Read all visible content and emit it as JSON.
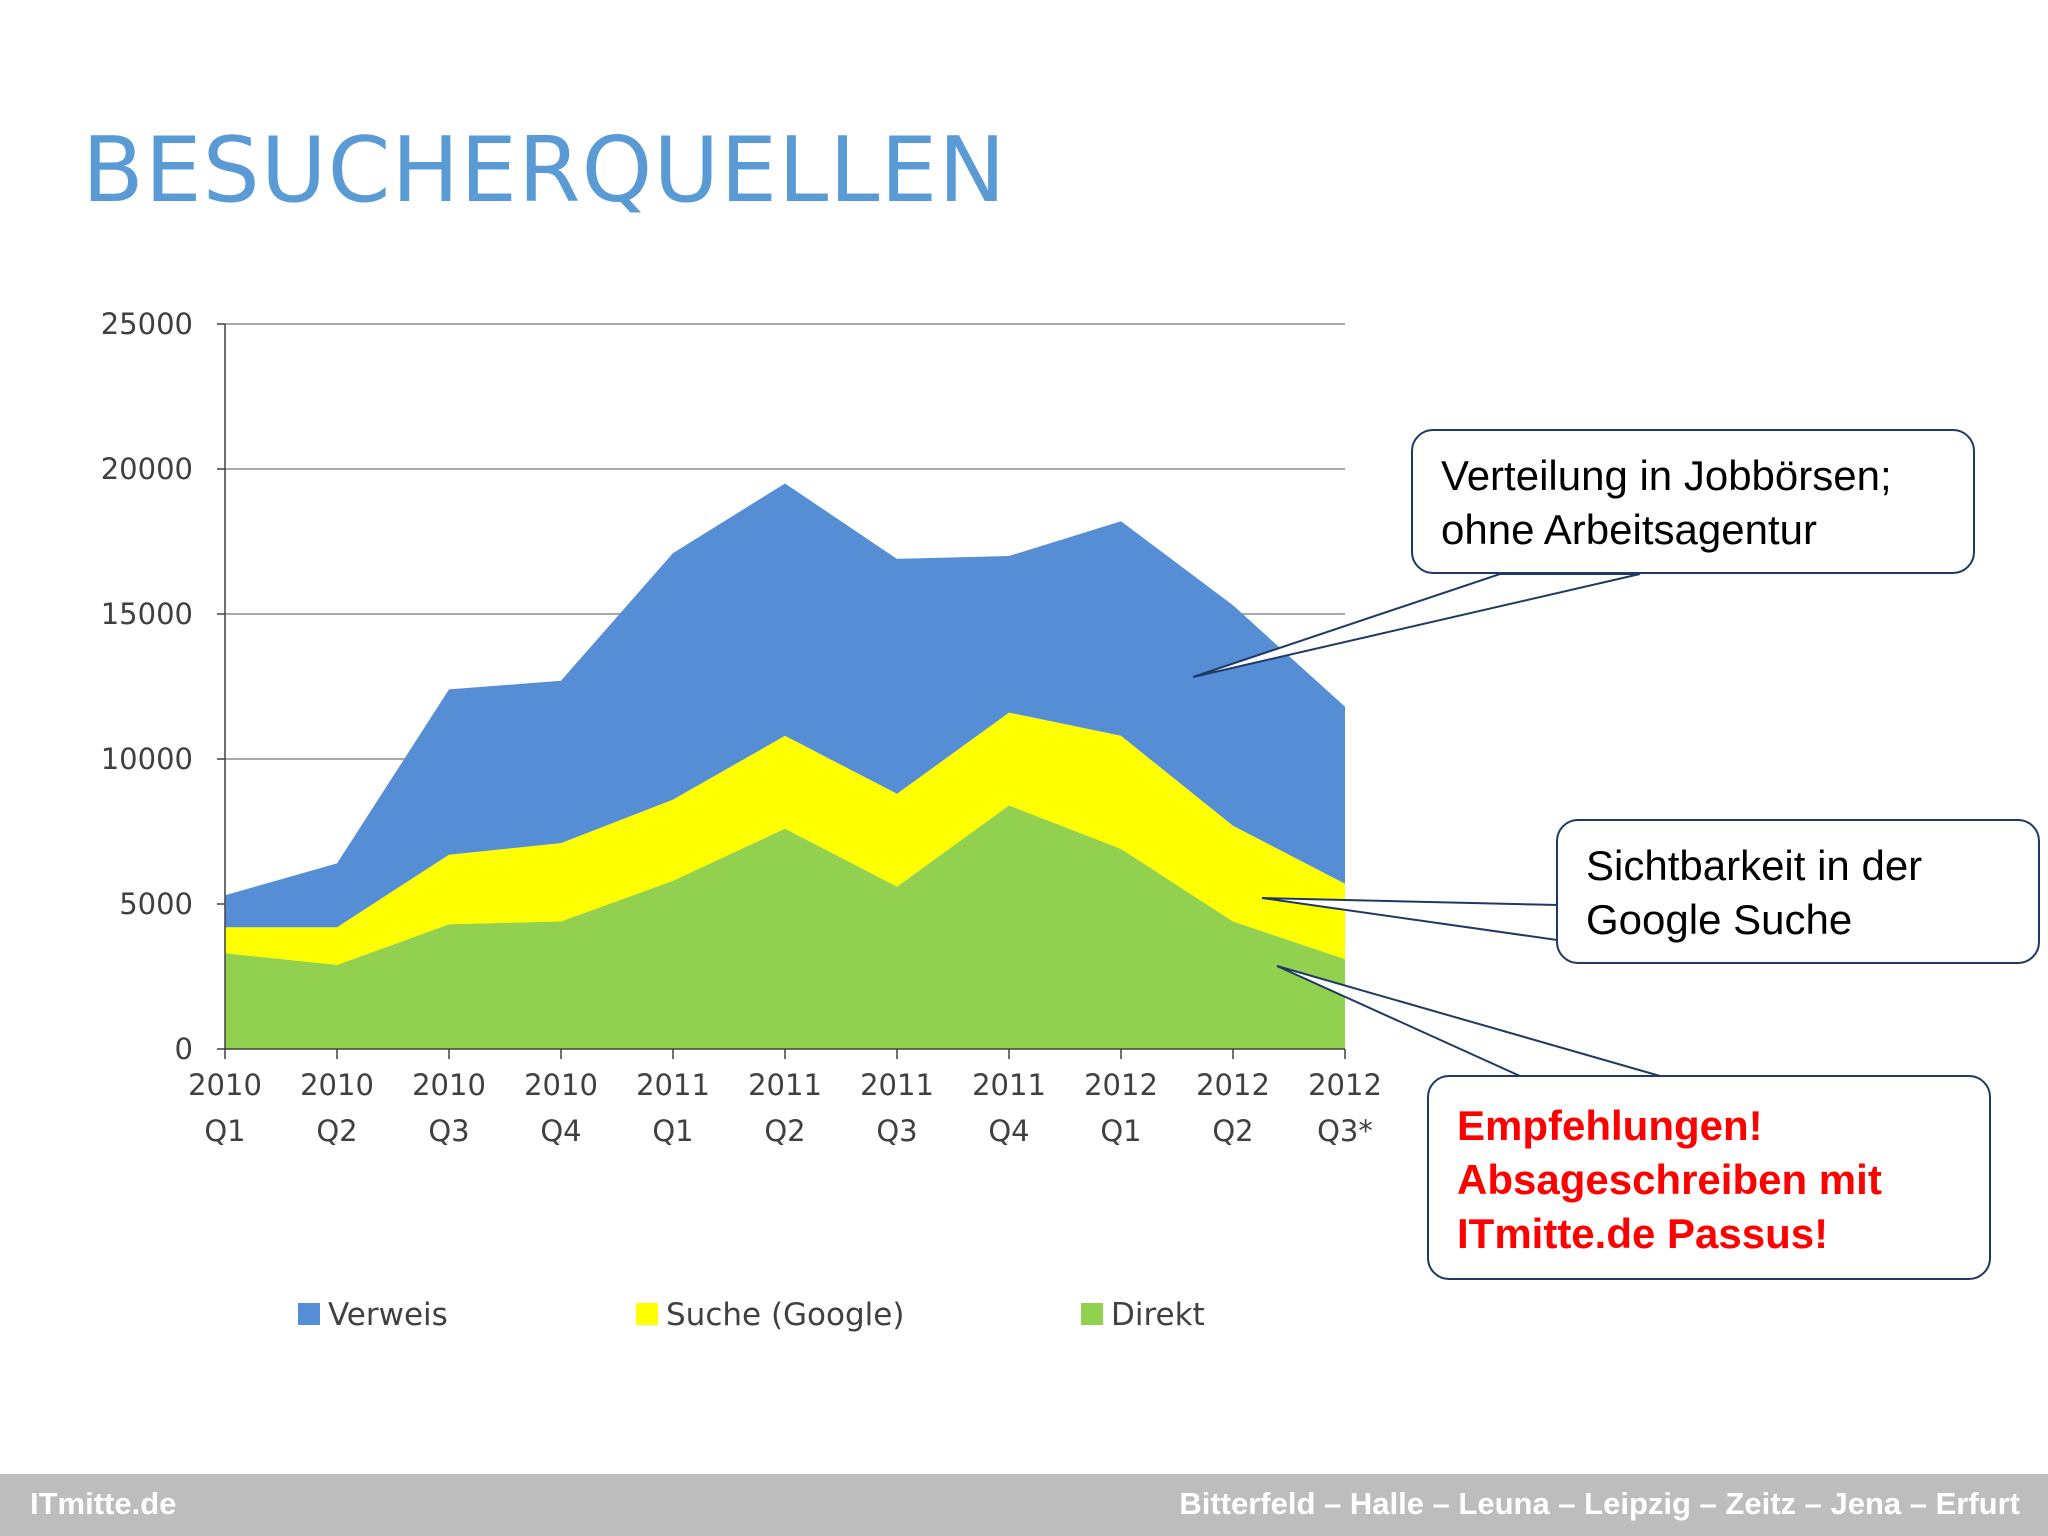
{
  "title": "BESUCHERQUELLEN",
  "chart_data": {
    "type": "area",
    "stacked": true,
    "categories": [
      [
        "2010",
        "Q1"
      ],
      [
        "2010",
        "Q2"
      ],
      [
        "2010",
        "Q3"
      ],
      [
        "2010",
        "Q4"
      ],
      [
        "2011",
        "Q1"
      ],
      [
        "2011",
        "Q2"
      ],
      [
        "2011",
        "Q3"
      ],
      [
        "2011",
        "Q4"
      ],
      [
        "2012",
        "Q1"
      ],
      [
        "2012",
        "Q2"
      ],
      [
        "2012",
        "Q3*"
      ]
    ],
    "series": [
      {
        "name": "Direkt",
        "color": "#92d050",
        "values": [
          3300,
          2900,
          4300,
          4400,
          5800,
          7600,
          5600,
          8400,
          6900,
          4400,
          3100
        ]
      },
      {
        "name": "Suche (Google)",
        "color": "#ffff00",
        "values": [
          900,
          1300,
          2400,
          2700,
          2800,
          3200,
          3200,
          3200,
          3900,
          3300,
          2600
        ]
      },
      {
        "name": "Verweis",
        "color": "#558ed5",
        "values": [
          1100,
          2200,
          5700,
          5600,
          8500,
          8700,
          8100,
          5400,
          7400,
          7600,
          6100
        ]
      }
    ],
    "legend_order": [
      "Verweis",
      "Suche (Google)",
      "Direkt"
    ],
    "yticks": [
      0,
      5000,
      10000,
      15000,
      20000,
      25000
    ],
    "ylim": [
      0,
      25000
    ],
    "grid": true,
    "legend_position": "bottom"
  },
  "callouts": {
    "verweis": [
      "Verteilung in Jobbörsen;",
      "ohne Arbeitsagentur"
    ],
    "suche": [
      "Sichtbarkeit in der",
      "Google Suche"
    ],
    "direkt": [
      "Empfehlungen!",
      "Absageschreiben mit",
      "ITmitte.de Passus!"
    ]
  },
  "footer": {
    "left": "ITmitte.de",
    "right": "Bitterfeld – Halle – Leuna – Leipzig – Zeitz – Jena – Erfurt"
  }
}
